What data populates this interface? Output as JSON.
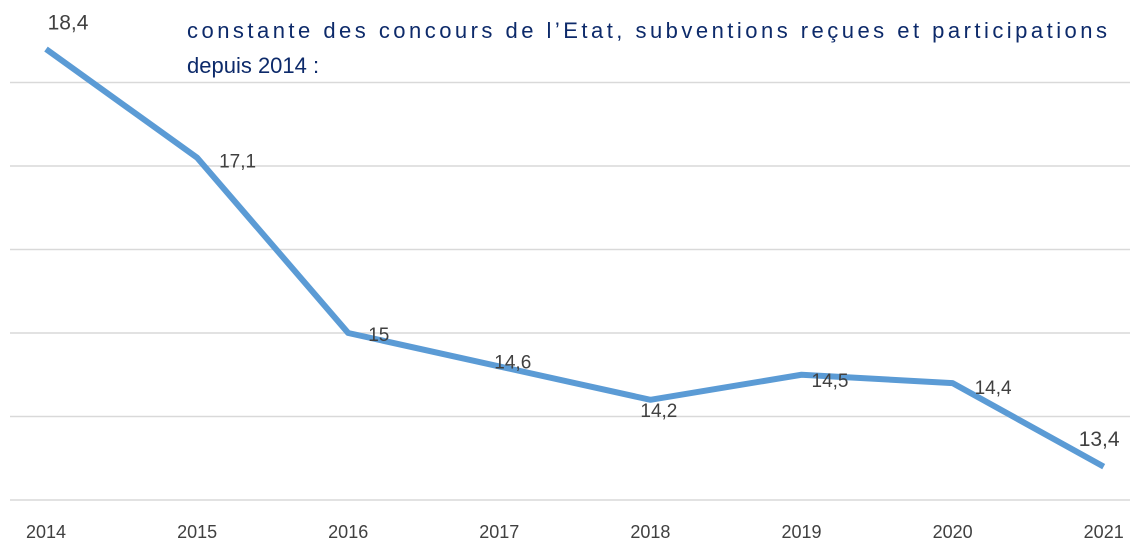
{
  "chart_data": {
    "type": "line",
    "title_lines": [
      "constante des concours de l’Etat, subventions reçues et participations",
      "depuis 2014 :"
    ],
    "categories": [
      "2014",
      "2015",
      "2016",
      "2017",
      "2018",
      "2019",
      "2020",
      "2021"
    ],
    "series": [
      {
        "color": "#5b9bd5",
        "values": [
          18.4,
          17.1,
          15,
          14.6,
          14.2,
          14.5,
          14.4,
          13.4
        ],
        "value_labels": [
          "18,4",
          "17,1",
          "15",
          "14,6",
          "14,2",
          "14,5",
          "14,4",
          "13,4"
        ]
      }
    ],
    "ylim": [
      13,
      19
    ],
    "yticks": [
      13,
      14,
      15,
      16,
      17,
      18
    ],
    "grid": true
  }
}
